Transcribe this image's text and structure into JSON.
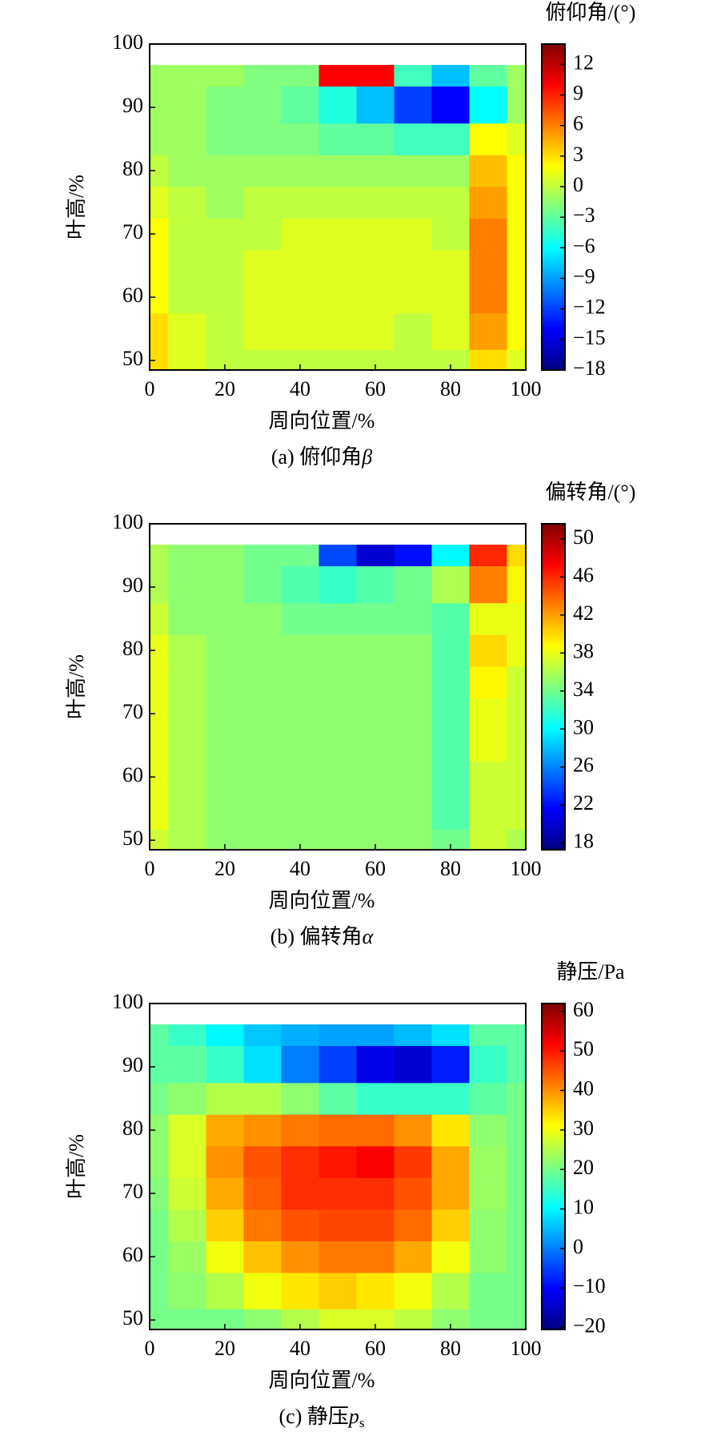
{
  "chart_data": [
    {
      "type": "contour",
      "colormap": "jet",
      "colorbar_label": "俯仰角/(°)",
      "xlabel": "周向位置/%",
      "ylabel": "叶高/%",
      "caption": "(a) 俯仰角",
      "caption_symbol": "β",
      "xlim": [
        0,
        100
      ],
      "xticks": [
        0,
        20,
        40,
        60,
        80,
        100
      ],
      "ylim": [
        48.5,
        100
      ],
      "yticks": [
        50,
        60,
        70,
        80,
        90,
        100
      ],
      "clim": [
        -18,
        14
      ],
      "cticks": [
        {
          "value": -18,
          "label": "−18"
        },
        {
          "value": -15,
          "label": "−15"
        },
        {
          "value": -12,
          "label": "−12"
        },
        {
          "value": -9,
          "label": "−9"
        },
        {
          "value": -6,
          "label": "−6"
        },
        {
          "value": -3,
          "label": "−3"
        },
        0,
        3,
        6,
        9,
        12
      ],
      "x": [
        0,
        10,
        20,
        30,
        40,
        50,
        60,
        70,
        80,
        90,
        100
      ],
      "y": [
        48.5,
        55,
        60,
        65,
        70,
        75,
        80,
        85,
        90,
        96.7
      ],
      "z": [
        [
          3,
          1,
          0,
          0,
          0,
          0,
          0,
          0,
          0,
          3,
          1
        ],
        [
          3,
          1,
          0,
          1,
          1,
          1,
          1,
          0,
          1,
          5,
          2
        ],
        [
          2,
          0,
          0,
          1,
          1,
          1,
          1,
          1,
          1,
          6,
          2
        ],
        [
          2,
          0,
          0,
          1,
          1,
          1,
          1,
          1,
          1,
          6,
          2
        ],
        [
          2,
          0,
          0,
          0,
          1,
          1,
          1,
          1,
          0,
          6,
          2
        ],
        [
          1,
          0,
          -1,
          0,
          0,
          0,
          0,
          0,
          0,
          5,
          2
        ],
        [
          0,
          -1,
          -1,
          -1,
          -1,
          -1,
          -1,
          -1,
          -1,
          4,
          2
        ],
        [
          -1,
          -1,
          -2,
          -2,
          -2,
          -3,
          -3,
          -4,
          -4,
          2,
          1
        ],
        [
          -1,
          -1,
          -2,
          -2,
          -3,
          -5,
          -8,
          -12,
          -14,
          -6,
          -1
        ],
        [
          -1,
          -1,
          -1,
          -2,
          -2,
          10,
          10,
          -4,
          -8,
          -3,
          -1
        ]
      ]
    },
    {
      "type": "contour",
      "colormap": "jet",
      "colorbar_label": "偏转角/(°)",
      "xlabel": "周向位置/%",
      "ylabel": "叶高/%",
      "caption": "(b) 偏转角",
      "caption_symbol": "α",
      "xlim": [
        0,
        100
      ],
      "xticks": [
        0,
        20,
        40,
        60,
        80,
        100
      ],
      "ylim": [
        48.5,
        100
      ],
      "yticks": [
        50,
        60,
        70,
        80,
        90,
        100
      ],
      "clim": [
        17.3,
        51.6
      ],
      "cticks": [
        18,
        22,
        26,
        30,
        34,
        38,
        42,
        46,
        50
      ],
      "x": [
        0,
        10,
        20,
        30,
        40,
        50,
        60,
        70,
        80,
        90,
        100
      ],
      "y": [
        48.5,
        55,
        60,
        65,
        70,
        75,
        80,
        85,
        90,
        96.7
      ],
      "z": [
        [
          37,
          36,
          35,
          35,
          35,
          35,
          35,
          35,
          34,
          37,
          36
        ],
        [
          38,
          36,
          35,
          35,
          35,
          35,
          35,
          35,
          33,
          37,
          37
        ],
        [
          38,
          36,
          35,
          35,
          35,
          35,
          35,
          35,
          33,
          37,
          37
        ],
        [
          38,
          36,
          35,
          35,
          35,
          35,
          35,
          35,
          33,
          38,
          37
        ],
        [
          38,
          36,
          35,
          35,
          35,
          35,
          35,
          35,
          33,
          38,
          37
        ],
        [
          38,
          36,
          35,
          35,
          35,
          35,
          35,
          35,
          33,
          39,
          37
        ],
        [
          38,
          36,
          35,
          35,
          35,
          35,
          35,
          35,
          33,
          40,
          38
        ],
        [
          37,
          35,
          35,
          35,
          34,
          34,
          34,
          34,
          33,
          38,
          38
        ],
        [
          36,
          35,
          35,
          34,
          33,
          32,
          33,
          34,
          36,
          43,
          39
        ],
        [
          36,
          35,
          35,
          34,
          34,
          24,
          20,
          22,
          30,
          46,
          40
        ]
      ]
    },
    {
      "type": "contour",
      "colormap": "jet",
      "colorbar_label": "静压/Pa",
      "xlabel": "周向位置/%",
      "ylabel": "叶高/%",
      "caption": "(c) 静压",
      "caption_symbol": "p",
      "caption_subscript": "s",
      "xlim": [
        0,
        100
      ],
      "xticks": [
        0,
        20,
        40,
        60,
        80,
        100
      ],
      "ylim": [
        48.5,
        100
      ],
      "yticks": [
        50,
        60,
        70,
        80,
        90,
        100
      ],
      "clim": [
        -20.5,
        62
      ],
      "cticks": [
        {
          "value": -20,
          "label": "−20"
        },
        {
          "value": -10,
          "label": "−10"
        },
        0,
        10,
        20,
        30,
        40,
        50,
        60
      ],
      "x": [
        0,
        10,
        20,
        30,
        40,
        50,
        60,
        70,
        80,
        90,
        100
      ],
      "y": [
        48.5,
        55,
        60,
        65,
        70,
        75,
        80,
        85,
        90,
        96.7
      ],
      "z": [
        [
          20,
          20,
          20,
          22,
          25,
          28,
          28,
          26,
          22,
          20,
          20
        ],
        [
          20,
          22,
          25,
          30,
          33,
          35,
          33,
          30,
          25,
          20,
          20
        ],
        [
          20,
          23,
          30,
          36,
          40,
          42,
          42,
          38,
          30,
          22,
          20
        ],
        [
          20,
          25,
          35,
          42,
          45,
          46,
          46,
          43,
          35,
          22,
          20
        ],
        [
          21,
          27,
          38,
          44,
          48,
          48,
          48,
          45,
          38,
          23,
          20
        ],
        [
          22,
          28,
          40,
          45,
          48,
          50,
          52,
          47,
          38,
          23,
          20
        ],
        [
          22,
          28,
          38,
          40,
          42,
          43,
          43,
          40,
          33,
          22,
          20
        ],
        [
          20,
          22,
          25,
          25,
          22,
          18,
          15,
          15,
          15,
          18,
          20
        ],
        [
          18,
          18,
          15,
          8,
          0,
          -5,
          -12,
          -14,
          -8,
          15,
          18
        ],
        [
          18,
          15,
          10,
          6,
          4,
          3,
          3,
          5,
          8,
          18,
          18
        ]
      ]
    }
  ]
}
